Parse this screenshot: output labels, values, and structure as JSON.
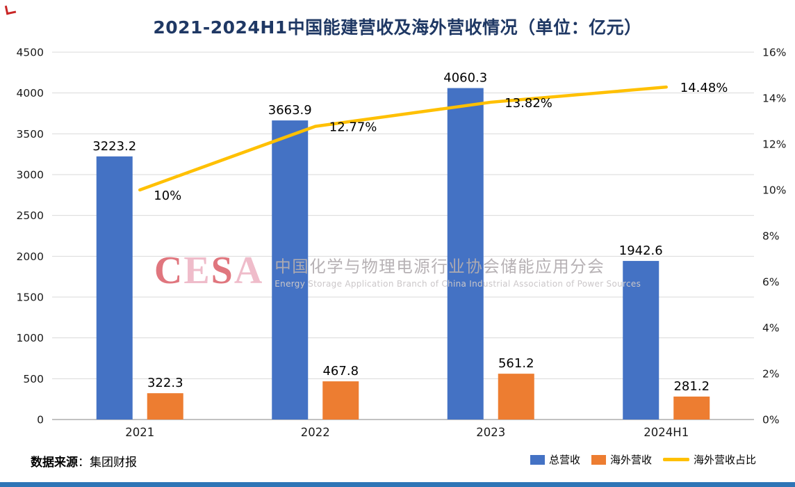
{
  "page": {
    "title": "2021-2024H1中国能建营收及海外营收情况（单位：亿元）",
    "source_label": "数据来源",
    "source_value": "：集团财报",
    "watermark": {
      "logo": "CESA",
      "cn": "中国化学与物理电源行业协会储能应用分会",
      "en": "Energy Storage Application Branch of China Industrial Association of Power Sources"
    }
  },
  "colors": {
    "title": "#1F3864",
    "grid": "#D9D9D9",
    "axis_line": "#9E9E9E",
    "text": "#1A1A1A",
    "bottom_bar": "#2E75B6"
  },
  "chart_data": {
    "type": "bar",
    "title": "2021-2024H1中国能建营收及海外营收情况（单位：亿元）",
    "categories": [
      "2021",
      "2022",
      "2023",
      "2024H1"
    ],
    "series": [
      {
        "name": "总营收",
        "type": "bar",
        "axis": "left",
        "color": "#4472C4",
        "values": [
          3223.2,
          3663.9,
          4060.3,
          1942.6
        ],
        "labels": [
          "3223.2",
          "3663.9",
          "4060.3",
          "1942.6"
        ]
      },
      {
        "name": "海外营收",
        "type": "bar",
        "axis": "left",
        "color": "#ED7D31",
        "values": [
          322.3,
          467.8,
          561.2,
          281.2
        ],
        "labels": [
          "322.3",
          "467.8",
          "561.2",
          "281.2"
        ]
      },
      {
        "name": "海外营收占比",
        "type": "line",
        "axis": "right",
        "color": "#FFC000",
        "values": [
          10,
          12.77,
          13.82,
          14.48
        ],
        "labels": [
          "10%",
          "12.77%",
          "13.82%",
          "14.48%"
        ]
      }
    ],
    "left_axis": {
      "min": 0,
      "max": 4500,
      "step": 500,
      "ticks": [
        "0",
        "500",
        "1000",
        "1500",
        "2000",
        "2500",
        "3000",
        "3500",
        "4000",
        "4500"
      ]
    },
    "right_axis": {
      "min": 0,
      "max": 16,
      "step": 2,
      "ticks": [
        "0%",
        "2%",
        "4%",
        "6%",
        "8%",
        "10%",
        "12%",
        "14%",
        "16%"
      ]
    },
    "grid": true,
    "legend_position": "bottom-right"
  }
}
